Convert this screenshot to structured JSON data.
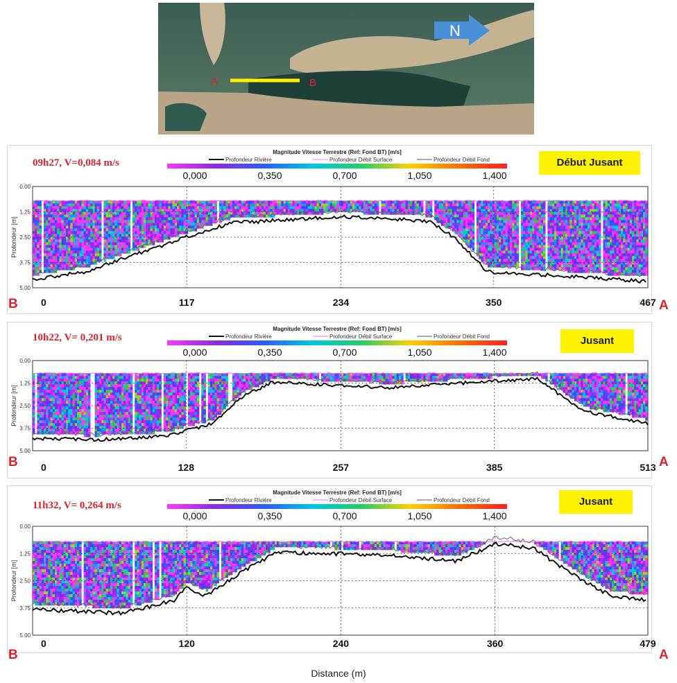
{
  "map": {
    "north_label": "N",
    "point_a": "A",
    "point_b": "B"
  },
  "colors": {
    "label_red": "#e0202a",
    "phase_yellow": "#fff200",
    "section_line": "#ffee00",
    "arrow_blue": "#4a90d9"
  },
  "legend": {
    "title": "Magnitude Vitesse Terrestre (Ref: Fond BT) [m/s]",
    "lines": [
      "Profondeur Rivière",
      "Profondeur Débit Surface",
      "Profondeur Débit Fond"
    ],
    "ticks": [
      "0,000",
      "0,350",
      "0,700",
      "1,050",
      "1,400"
    ]
  },
  "y_axis": {
    "label": "Profondeur [m]",
    "ticks": [
      "0.00",
      "1.25",
      "2.50",
      "3.75",
      "5.00"
    ]
  },
  "x_axis_label": "Distance (m)",
  "chart_data": [
    {
      "type": "heatmap",
      "title": "09h27, V=0,084 m/s",
      "phase": "Début Jusant",
      "left_end": "B",
      "right_end": "A",
      "x_ticks": [
        "0",
        "117",
        "234",
        "350",
        "467"
      ],
      "ylim": [
        0,
        5
      ],
      "bed_depth": [
        [
          0,
          4.6
        ],
        [
          40,
          4.2
        ],
        [
          117,
          2.5
        ],
        [
          150,
          1.8
        ],
        [
          234,
          1.5
        ],
        [
          300,
          1.7
        ],
        [
          320,
          2.5
        ],
        [
          345,
          4.2
        ],
        [
          400,
          4.4
        ],
        [
          467,
          4.7
        ]
      ]
    },
    {
      "type": "heatmap",
      "title": "10h22, V= 0,201 m/s",
      "phase": "Jusant",
      "left_end": "B",
      "right_end": "A",
      "x_ticks": [
        "0",
        "128",
        "257",
        "385",
        "513"
      ],
      "ylim": [
        0,
        5
      ],
      "bed_depth": [
        [
          0,
          4.3
        ],
        [
          50,
          4.4
        ],
        [
          110,
          4.2
        ],
        [
          150,
          3.5
        ],
        [
          175,
          2.0
        ],
        [
          200,
          1.2
        ],
        [
          300,
          1.5
        ],
        [
          370,
          1.2
        ],
        [
          420,
          1.0
        ],
        [
          460,
          2.8
        ],
        [
          513,
          3.5
        ]
      ]
    },
    {
      "type": "heatmap",
      "title": "11h32, V= 0,264 m/s",
      "phase": "Jusant",
      "left_end": "B",
      "right_end": "A",
      "x_ticks": [
        "0",
        "120",
        "240",
        "360",
        "479"
      ],
      "ylim": [
        0,
        5
      ],
      "bed_depth": [
        [
          0,
          3.8
        ],
        [
          70,
          4.0
        ],
        [
          110,
          3.4
        ],
        [
          120,
          2.8
        ],
        [
          135,
          3.2
        ],
        [
          160,
          2.2
        ],
        [
          190,
          1.2
        ],
        [
          270,
          1.3
        ],
        [
          330,
          1.6
        ],
        [
          360,
          0.8
        ],
        [
          390,
          1.0
        ],
        [
          420,
          2.2
        ],
        [
          450,
          3.2
        ],
        [
          479,
          3.4
        ]
      ]
    }
  ]
}
